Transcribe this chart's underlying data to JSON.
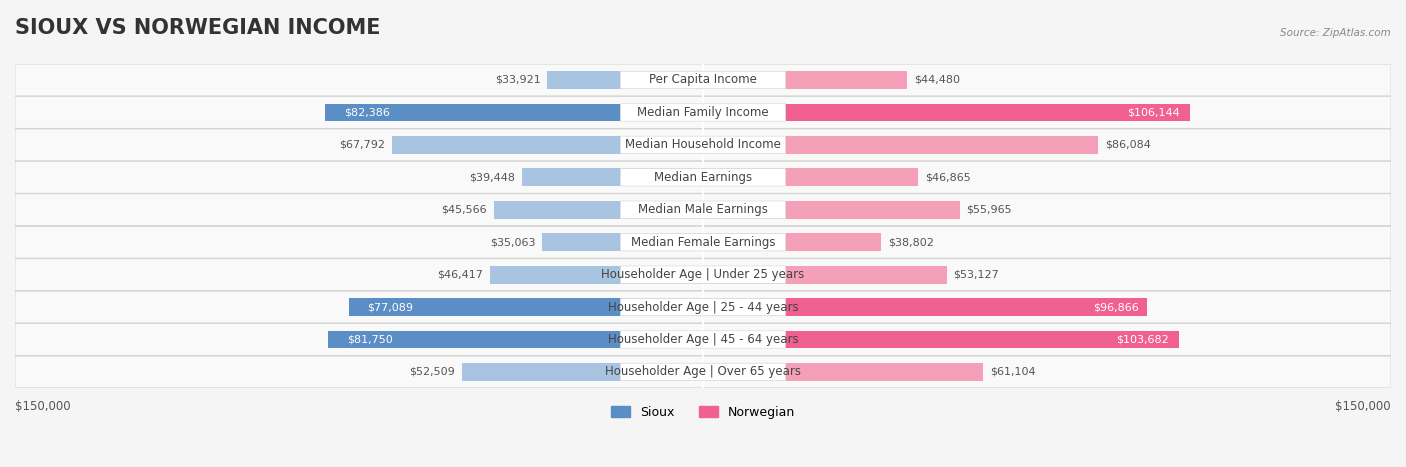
{
  "title": "SIOUX VS NORWEGIAN INCOME",
  "source": "Source: ZipAtlas.com",
  "categories": [
    "Per Capita Income",
    "Median Family Income",
    "Median Household Income",
    "Median Earnings",
    "Median Male Earnings",
    "Median Female Earnings",
    "Householder Age | Under 25 years",
    "Householder Age | 25 - 44 years",
    "Householder Age | 45 - 64 years",
    "Householder Age | Over 65 years"
  ],
  "sioux_values": [
    33921,
    82386,
    67792,
    39448,
    45566,
    35063,
    46417,
    77089,
    81750,
    52509
  ],
  "norwegian_values": [
    44480,
    106144,
    86084,
    46865,
    55965,
    38802,
    53127,
    96866,
    103682,
    61104
  ],
  "sioux_color_light": "#a8c4e0",
  "sioux_color_dark": "#5b8ec4",
  "norwegian_color_light": "#f4a0b8",
  "norwegian_color_dark": "#f06090",
  "max_value": 150000,
  "background_color": "#f5f5f5",
  "row_bg_color": "#ffffff",
  "label_bg_color": "#ffffff",
  "title_fontsize": 15,
  "label_fontsize": 8.5,
  "value_fontsize": 8,
  "axis_label": "$150,000"
}
